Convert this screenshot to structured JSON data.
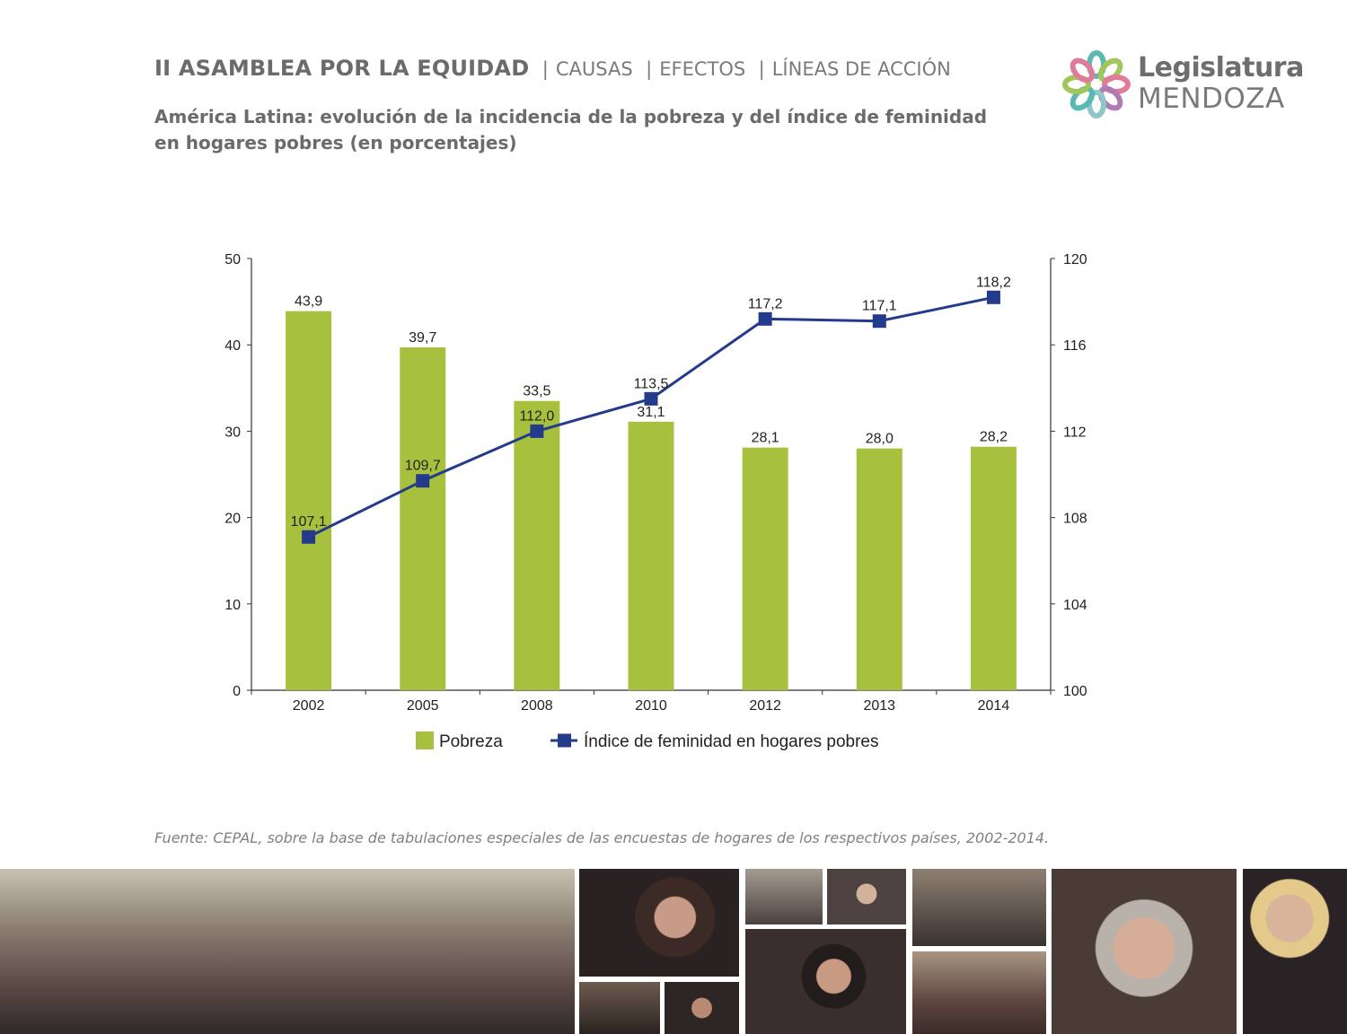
{
  "header": {
    "title": "II ASAMBLEA POR LA EQUIDAD",
    "links": [
      "CAUSAS",
      "EFECTOS",
      "LÍNEAS DE ACCIÓN"
    ]
  },
  "subtitle": "América Latina: evolución de la incidencia de la pobreza y del índice de feminidad en hogares pobres (en porcentajes)",
  "logo": {
    "line1": "Legislatura",
    "line2": "MENDOZA",
    "colors": [
      "#5cb8b2",
      "#a3c65a",
      "#e07b9b",
      "#b07bb4",
      "#8fc6c9"
    ]
  },
  "chart_data": {
    "type": "bar+line",
    "categories": [
      "2002",
      "2005",
      "2008",
      "2010",
      "2012",
      "2013",
      "2014"
    ],
    "series": [
      {
        "name": "Pobreza",
        "type": "bar",
        "axis": "left",
        "color": "#a7c13e",
        "values": [
          43.9,
          39.7,
          33.5,
          31.1,
          28.1,
          28.0,
          28.2
        ],
        "labels": [
          "43,9",
          "39,7",
          "33,5",
          "31,1",
          "28,1",
          "28,0",
          "28,2"
        ]
      },
      {
        "name": "Índice de feminidad en hogares pobres",
        "type": "line",
        "axis": "right",
        "color": "#243a8a",
        "values": [
          107.1,
          109.7,
          112.0,
          113.5,
          117.2,
          117.1,
          118.2
        ],
        "labels": [
          "107,1",
          "109,7",
          "112,0",
          "113,5",
          "117,2",
          "117,1",
          "118,2"
        ]
      }
    ],
    "y_left": {
      "min": 0,
      "max": 50,
      "ticks": [
        "0",
        "10",
        "20",
        "30",
        "40",
        "50"
      ]
    },
    "y_right": {
      "min": 100,
      "max": 120,
      "ticks": [
        "100",
        "104",
        "108",
        "112",
        "116",
        "120"
      ]
    },
    "grid": false,
    "legend_position": "bottom"
  },
  "source": "Fuente: CEPAL, sobre la base de tabulaciones especiales de las encuestas de hogares de los respectivos países, 2002-2014.",
  "photos": [
    "group-photo",
    "speaker-photo",
    "audience-photo",
    "speaker-photo",
    "audience-photo",
    "speaker-photo",
    "audience-photo",
    "speaker-photo",
    "speaker-photo",
    "speaker-photo"
  ]
}
